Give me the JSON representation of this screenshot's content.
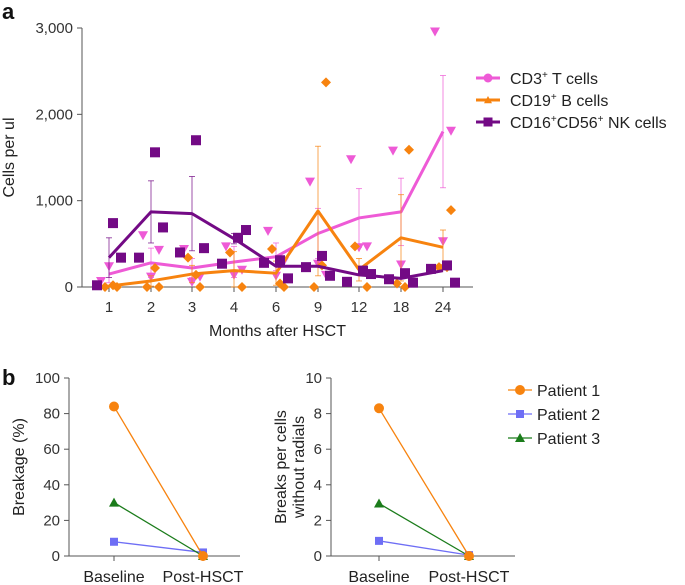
{
  "chart_data": [
    {
      "panel": "a",
      "type": "line",
      "xlabel": "Months after HSCT",
      "ylabel": "Cells per ul",
      "ylim": [
        0,
        3000
      ],
      "yticks": [
        0,
        1000,
        2000,
        3000
      ],
      "ytick_labels": [
        "0",
        "1,000",
        "2,000",
        "3,000"
      ],
      "categories": [
        "1",
        "2",
        "3",
        "4",
        "6",
        "9",
        "12",
        "18",
        "24"
      ],
      "legend_position": "right",
      "series": [
        {
          "name": "CD3⁺ T cells",
          "label_base": "CD3",
          "label_sup": "+",
          "label_rest": " T cells",
          "color": "#ee5ad6",
          "marker": "triangle-down",
          "values": [
            150,
            280,
            220,
            290,
            350,
            620,
            800,
            870,
            1800
          ],
          "errors": [
            100,
            170,
            110,
            180,
            160,
            290,
            340,
            390,
            650
          ],
          "points": [
            [
              1,
              70
            ],
            [
              1,
              240
            ],
            [
              2,
              600
            ],
            [
              2,
              120
            ],
            [
              2,
              430
            ],
            [
              3,
              440
            ],
            [
              3,
              60
            ],
            [
              3,
              120
            ],
            [
              4,
              470
            ],
            [
              4,
              140
            ],
            [
              4,
              200
            ],
            [
              6,
              650
            ],
            [
              6,
              130
            ],
            [
              6,
              300
            ],
            [
              9,
              1220
            ],
            [
              9,
              270
            ],
            [
              9,
              140
            ],
            [
              12,
              1480
            ],
            [
              12,
              460
            ],
            [
              12,
              470
            ],
            [
              18,
              1580
            ],
            [
              18,
              260
            ],
            [
              24,
              2960
            ],
            [
              24,
              530
            ],
            [
              24,
              1810
            ]
          ]
        },
        {
          "name": "CD19⁺ B cells",
          "label_base": "CD19",
          "label_sup": "+",
          "label_rest": " B cells",
          "color": "#f7830f",
          "marker": "diamond",
          "values": [
            10,
            70,
            150,
            190,
            160,
            880,
            200,
            570,
            460
          ],
          "errors": [
            10,
            60,
            100,
            220,
            140,
            750,
            130,
            500,
            200
          ],
          "points": [
            [
              1,
              0
            ],
            [
              1,
              0
            ],
            [
              1,
              20
            ],
            [
              2,
              0
            ],
            [
              2,
              0
            ],
            [
              2,
              220
            ],
            [
              3,
              0
            ],
            [
              3,
              340
            ],
            [
              3,
              140
            ],
            [
              4,
              0
            ],
            [
              4,
              400
            ],
            [
              6,
              0
            ],
            [
              6,
              440
            ],
            [
              6,
              40
            ],
            [
              9,
              2370
            ],
            [
              9,
              0
            ],
            [
              9,
              250
            ],
            [
              12,
              0
            ],
            [
              12,
              470
            ],
            [
              18,
              1590
            ],
            [
              18,
              40
            ],
            [
              18,
              0
            ],
            [
              24,
              890
            ],
            [
              24,
              230
            ],
            [
              24,
              230
            ]
          ]
        },
        {
          "name": "CD16⁺CD56⁺ NK cells",
          "label_base": "CD16",
          "label_sup": "+",
          "label_mid": "CD56",
          "label_sup2": "+",
          "label_rest": " NK cells",
          "color": "#730a85",
          "marker": "square",
          "values": [
            340,
            870,
            850,
            560,
            240,
            240,
            140,
            100,
            190
          ],
          "errors": [
            230,
            360,
            430,
            60,
            0,
            0,
            0,
            0,
            0
          ],
          "points": [
            [
              1,
              740
            ],
            [
              1,
              340
            ],
            [
              1,
              20
            ],
            [
              2,
              1560
            ],
            [
              2,
              690
            ],
            [
              2,
              340
            ],
            [
              3,
              1700
            ],
            [
              3,
              450
            ],
            [
              3,
              400
            ],
            [
              4,
              570
            ],
            [
              4,
              660
            ],
            [
              4,
              270
            ],
            [
              6,
              310
            ],
            [
              6,
              100
            ],
            [
              6,
              280
            ],
            [
              9,
              360
            ],
            [
              9,
              130
            ],
            [
              9,
              230
            ],
            [
              12,
              190
            ],
            [
              12,
              150
            ],
            [
              12,
              60
            ],
            [
              18,
              160
            ],
            [
              18,
              50
            ],
            [
              18,
              90
            ],
            [
              24,
              250
            ],
            [
              24,
              50
            ],
            [
              24,
              210
            ]
          ]
        }
      ]
    },
    {
      "panel": "b-left",
      "type": "line",
      "xlabel": "",
      "ylabel": "Breakage (%)",
      "ylim": [
        0,
        100
      ],
      "yticks": [
        0,
        20,
        40,
        60,
        80,
        100
      ],
      "categories": [
        "Baseline",
        "Post-HSCT"
      ],
      "series": [
        {
          "name": "Patient 1",
          "color": "#f7830f",
          "marker": "circle",
          "values": [
            84,
            0
          ]
        },
        {
          "name": "Patient 2",
          "color": "#6e6ef5",
          "marker": "square",
          "values": [
            8,
            2
          ]
        },
        {
          "name": "Patient 3",
          "color": "#1b7c1b",
          "marker": "triangle",
          "values": [
            30,
            0
          ]
        }
      ]
    },
    {
      "panel": "b-right",
      "type": "line",
      "xlabel": "",
      "ylabel": [
        "Breaks per cells",
        "without radials"
      ],
      "ylim": [
        0,
        10
      ],
      "yticks": [
        0,
        2,
        4,
        6,
        8,
        10
      ],
      "categories": [
        "Baseline",
        "Post-HSCT"
      ],
      "legend_position": "right",
      "series": [
        {
          "name": "Patient 1",
          "color": "#f7830f",
          "marker": "circle",
          "values": [
            8.3,
            0
          ]
        },
        {
          "name": "Patient 2",
          "color": "#6e6ef5",
          "marker": "square",
          "values": [
            0.85,
            0.05
          ]
        },
        {
          "name": "Patient 3",
          "color": "#1b7c1b",
          "marker": "triangle",
          "values": [
            2.95,
            0
          ]
        }
      ]
    }
  ],
  "panel_labels": {
    "a": "a",
    "b": "b"
  }
}
